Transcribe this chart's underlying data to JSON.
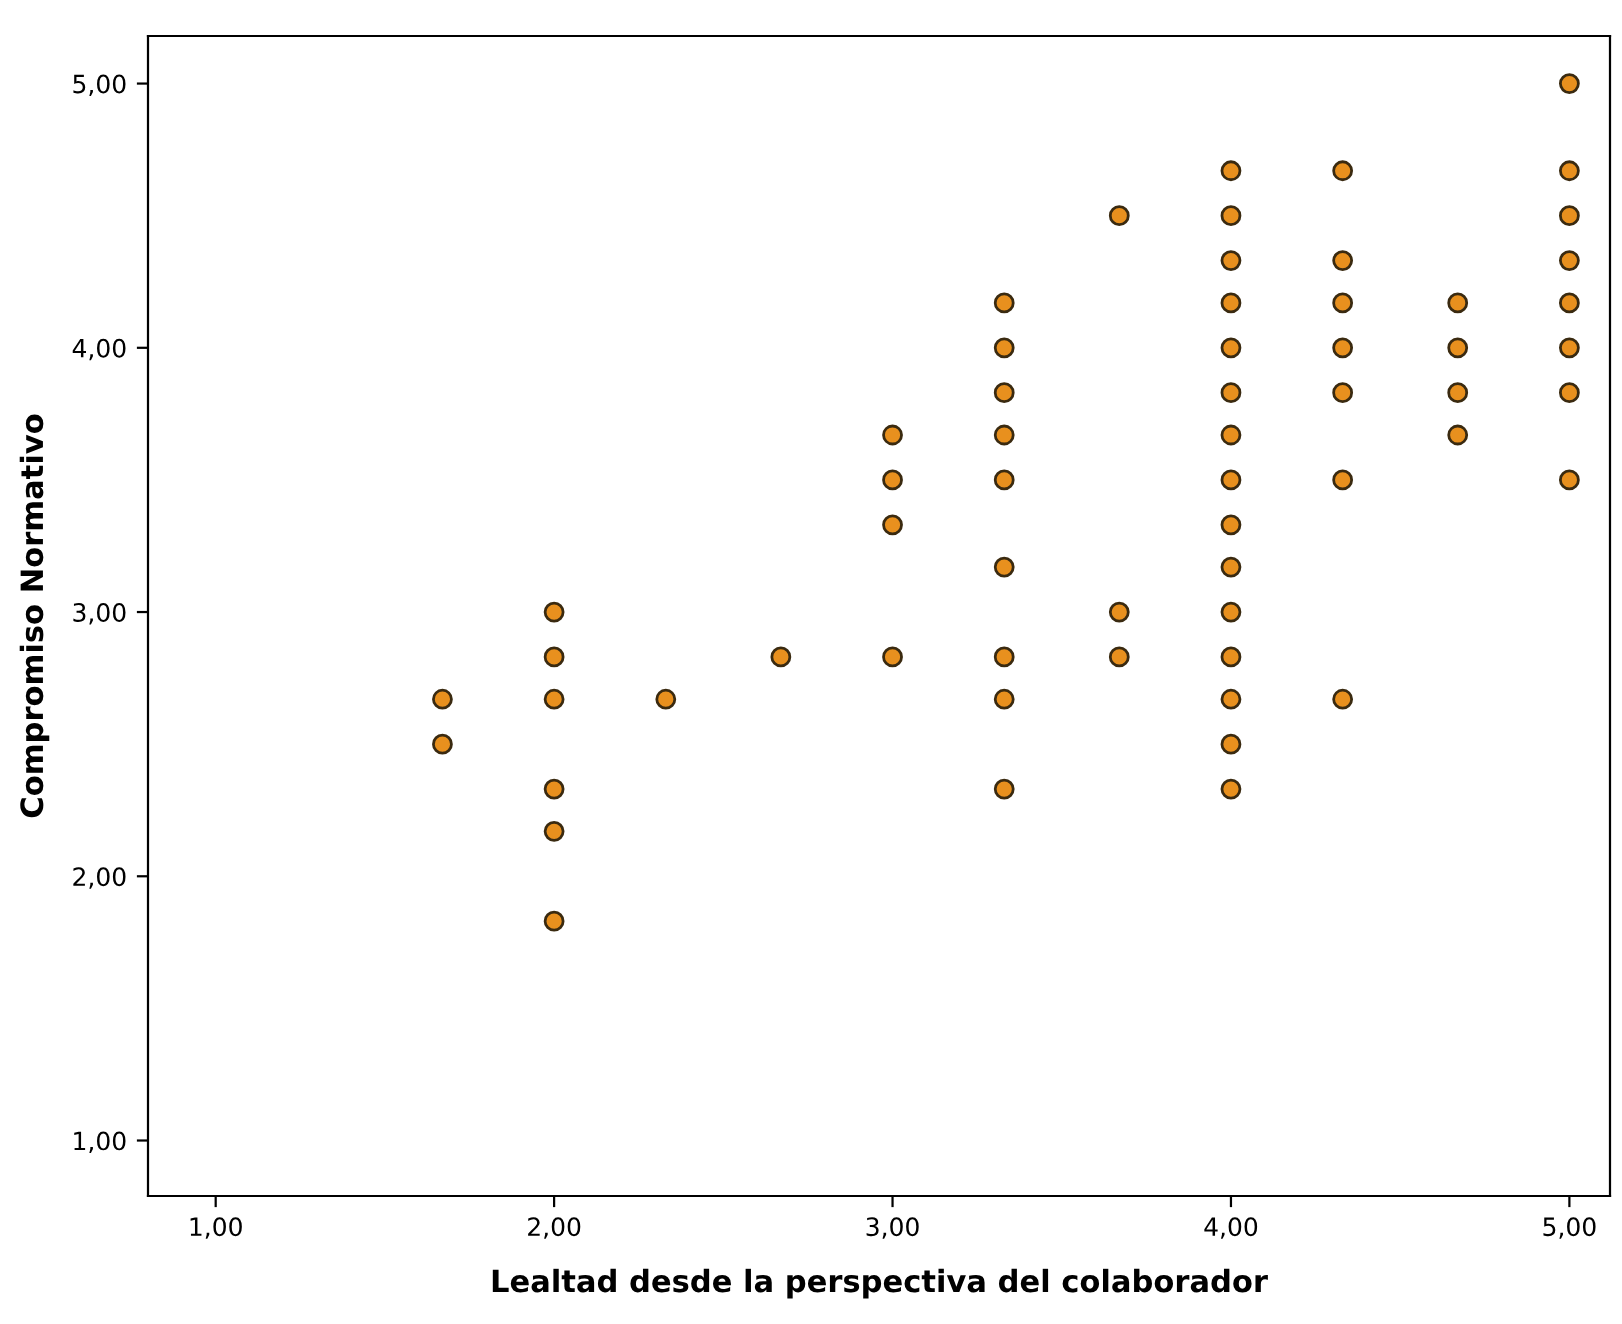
{
  "chart_data": {
    "type": "scatter",
    "xlabel": "Lealtad desde la perspectiva del colaborador",
    "ylabel": "Compromiso Normativo",
    "x": [
      1.67,
      1.67,
      2,
      2,
      2,
      2,
      2,
      2,
      2.33,
      2.67,
      3,
      3,
      3,
      3,
      3.33,
      3.33,
      3.33,
      3.33,
      3.33,
      3.33,
      3.33,
      3.33,
      3.33,
      3.67,
      3.67,
      3.67,
      4,
      4,
      4,
      4,
      4,
      4,
      4,
      4,
      4,
      4,
      4,
      4,
      4,
      4,
      4,
      4.33,
      4.33,
      4.33,
      4.33,
      4.33,
      4.33,
      4.33,
      4.67,
      4.67,
      4.67,
      4.67,
      5,
      5,
      5,
      5,
      5,
      5,
      5,
      5
    ],
    "series": [
      {
        "color": "#e8901e",
        "values": [
          2.67,
          2.5,
          3,
          2.83,
          2.67,
          2.33,
          2.17,
          1.83,
          2.67,
          2.83,
          3.67,
          3.5,
          3.33,
          2.83,
          4.17,
          4,
          3.83,
          3.67,
          3.5,
          3.17,
          2.83,
          2.67,
          2.33,
          4.5,
          3,
          2.83,
          4.67,
          4.5,
          4.33,
          4.17,
          4,
          3.83,
          3.67,
          3.5,
          3.33,
          3.17,
          3,
          2.83,
          2.67,
          2.5,
          2.33,
          4.67,
          4.33,
          4.17,
          4,
          3.83,
          3.5,
          2.67,
          4.17,
          4,
          3.83,
          3.67,
          5,
          4.67,
          4.5,
          4.33,
          4.17,
          4,
          3.83,
          3.5
        ]
      }
    ],
    "marker": "circle",
    "grid": false,
    "legend": false,
    "xlim": [
      0.8,
      5.12
    ],
    "ylim": [
      0.79,
      5.18
    ],
    "xticks": [
      {
        "value": 1,
        "label": "1,00"
      },
      {
        "value": 2,
        "label": "2,00"
      },
      {
        "value": 3,
        "label": "3,00"
      },
      {
        "value": 4,
        "label": "4,00"
      },
      {
        "value": 5,
        "label": "5,00"
      }
    ],
    "yticks": [
      {
        "value": 1,
        "label": "1,00"
      },
      {
        "value": 2,
        "label": "2,00"
      },
      {
        "value": 3,
        "label": "3,00"
      },
      {
        "value": 4,
        "label": "4,00"
      },
      {
        "value": 5,
        "label": "5,00"
      }
    ]
  }
}
